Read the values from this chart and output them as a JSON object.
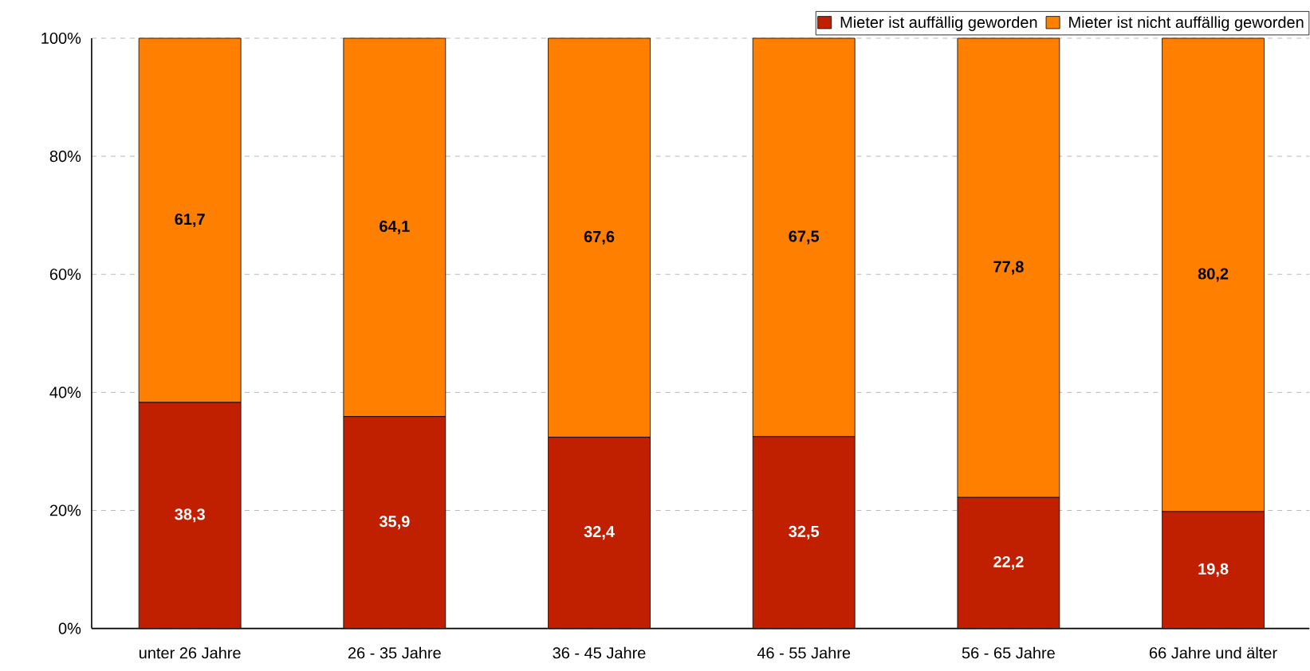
{
  "chart_data": {
    "type": "bar",
    "stacked": true,
    "categories": [
      "unter 26 Jahre",
      "26 - 35 Jahre",
      "36 - 45 Jahre",
      "46 - 55 Jahre",
      "56 - 65 Jahre",
      "66 Jahre und älter"
    ],
    "series": [
      {
        "name": "Mieter ist auffällig geworden",
        "color": "#c02000",
        "values": [
          38.3,
          35.9,
          32.4,
          32.5,
          22.2,
          19.8
        ],
        "value_labels": [
          "38,3",
          "35,9",
          "32,4",
          "32,5",
          "22,2",
          "19,8"
        ]
      },
      {
        "name": "Mieter ist nicht auffällig geworden",
        "color": "#ff8000",
        "values": [
          61.7,
          64.1,
          67.6,
          67.5,
          77.8,
          80.2
        ],
        "value_labels": [
          "61,7",
          "64,1",
          "67,6",
          "67,5",
          "77,8",
          "80,2"
        ]
      }
    ],
    "ylim": [
      0,
      100
    ],
    "yticks": [
      {
        "value": 0,
        "label": "0%"
      },
      {
        "value": 20,
        "label": "20%"
      },
      {
        "value": 40,
        "label": "40%"
      },
      {
        "value": 60,
        "label": "60%"
      },
      {
        "value": 80,
        "label": "80%"
      },
      {
        "value": 100,
        "label": "100%"
      }
    ],
    "grid": "y",
    "legend": "top right"
  }
}
